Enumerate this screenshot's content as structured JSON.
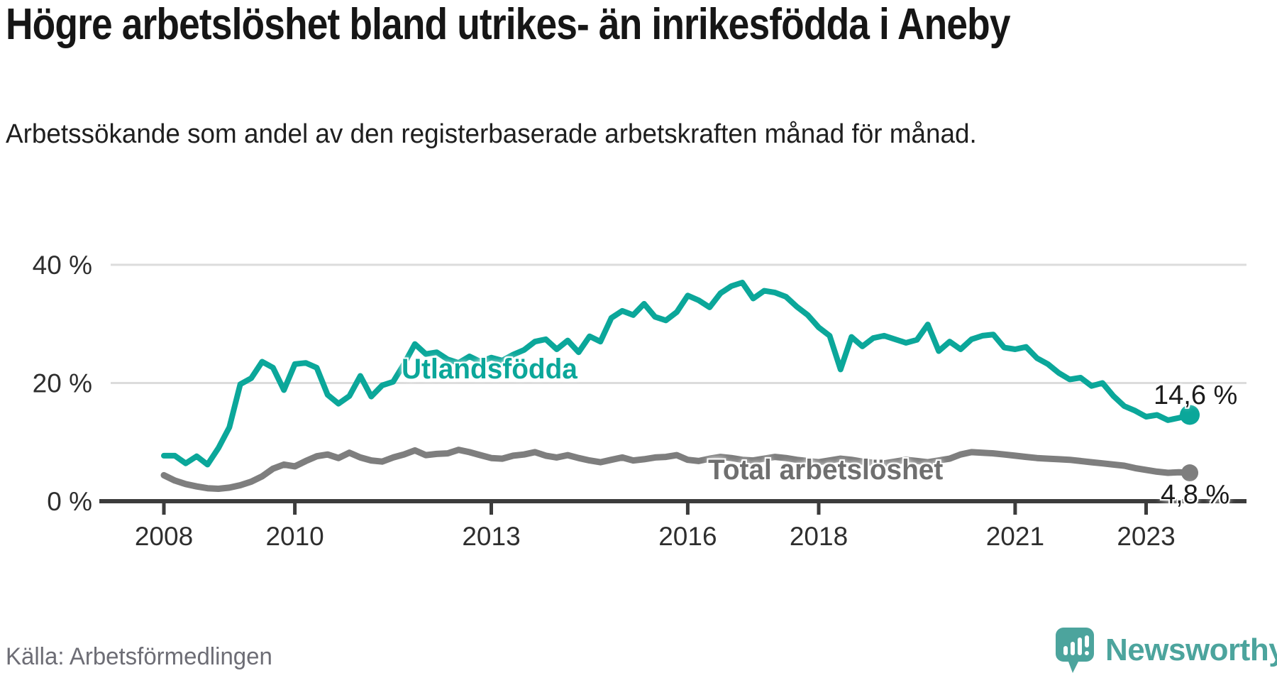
{
  "header": {
    "title": "Högre arbetslöshet bland utrikes- än inrikesfödda i Aneby",
    "subtitle": "Arbetssökande som andel av den registerbaserade arbetskraften månad för månad."
  },
  "chart_data": {
    "type": "line",
    "title": "Högre arbetslöshet bland utrikes- än inrikesfödda i Aneby",
    "xlabel": "",
    "ylabel": "Arbetssökande som andel av den registerbaserade arbetskraften",
    "x_unit": "decimal_year",
    "x_start": 2008.0,
    "x_step": 0.166667,
    "xlim": [
      2007.2,
      2024.5
    ],
    "ylim": [
      0,
      42
    ],
    "grid": "horizontal",
    "x_ticks": [
      2008,
      2010,
      2013,
      2016,
      2018,
      2021,
      2023
    ],
    "y_ticks": [
      {
        "value": 0,
        "label": "0 %"
      },
      {
        "value": 20,
        "label": "20 %"
      },
      {
        "value": 40,
        "label": "40 %"
      }
    ],
    "colors": {
      "grid": "#dcdcdc",
      "axis": "#3c3c3c",
      "tick_text": "#2e2e2e",
      "value_label": "#1b1b1b"
    },
    "series": [
      {
        "id": "utlandsfodda",
        "name": "Utlandsfödda",
        "color": "#0ba79a",
        "end_label": "14,6 %",
        "end_value": 14.6,
        "values": [
          7.7,
          7.7,
          6.4,
          7.6,
          6.2,
          9.0,
          12.5,
          19.8,
          20.8,
          23.6,
          22.6,
          18.8,
          23.2,
          23.4,
          22.6,
          18.0,
          16.5,
          17.8,
          21.2,
          17.7,
          19.6,
          20.2,
          23.2,
          26.6,
          24.9,
          25.2,
          24.0,
          23.4,
          24.5,
          23.6,
          24.3,
          23.8,
          24.8,
          25.6,
          27.0,
          27.4,
          25.7,
          27.2,
          25.2,
          27.9,
          27.0,
          31.0,
          32.2,
          31.5,
          33.4,
          31.2,
          30.6,
          32.0,
          34.8,
          34.0,
          32.8,
          35.2,
          36.4,
          37.0,
          34.3,
          35.6,
          35.3,
          34.6,
          32.9,
          31.5,
          29.4,
          28.0,
          22.3,
          27.8,
          26.2,
          27.6,
          28.0,
          27.4,
          26.8,
          27.3,
          29.9,
          25.4,
          27.0,
          25.7,
          27.4,
          28.0,
          28.2,
          26.0,
          25.7,
          26.1,
          24.2,
          23.2,
          21.7,
          20.6,
          20.9,
          19.5,
          20.0,
          17.8,
          16.1,
          15.3,
          14.3,
          14.6,
          13.7,
          14.1,
          14.6
        ]
      },
      {
        "id": "total",
        "name": "Total arbetslöshet",
        "color": "#7e7e7e",
        "end_label": "4,8 %",
        "end_value": 4.8,
        "values": [
          4.4,
          3.5,
          2.9,
          2.5,
          2.2,
          2.1,
          2.3,
          2.7,
          3.3,
          4.2,
          5.5,
          6.2,
          5.9,
          6.8,
          7.6,
          7.9,
          7.3,
          8.2,
          7.4,
          6.9,
          6.7,
          7.4,
          7.9,
          8.6,
          7.8,
          8.0,
          8.1,
          8.7,
          8.3,
          7.8,
          7.3,
          7.2,
          7.7,
          7.9,
          8.3,
          7.7,
          7.4,
          7.8,
          7.3,
          6.9,
          6.6,
          7.0,
          7.4,
          6.9,
          7.1,
          7.4,
          7.5,
          7.8,
          7.0,
          6.8,
          7.2,
          7.5,
          7.3,
          7.0,
          6.9,
          7.2,
          7.5,
          7.3,
          7.0,
          6.8,
          6.6,
          6.9,
          7.2,
          7.0,
          6.7,
          6.5,
          6.4,
          6.7,
          7.0,
          6.8,
          6.6,
          6.9,
          7.2,
          7.9,
          8.3,
          8.2,
          8.1,
          7.9,
          7.7,
          7.5,
          7.3,
          7.2,
          7.1,
          7.0,
          6.8,
          6.6,
          6.4,
          6.2,
          6.0,
          5.6,
          5.3,
          5.0,
          4.8,
          4.9,
          4.8
        ]
      }
    ],
    "legend_position": "inline-labels"
  },
  "footer": {
    "source": "Källa: Arbetsförmedlingen",
    "logo_text": "Newsworthy",
    "logo_color": "#4ca49d"
  }
}
